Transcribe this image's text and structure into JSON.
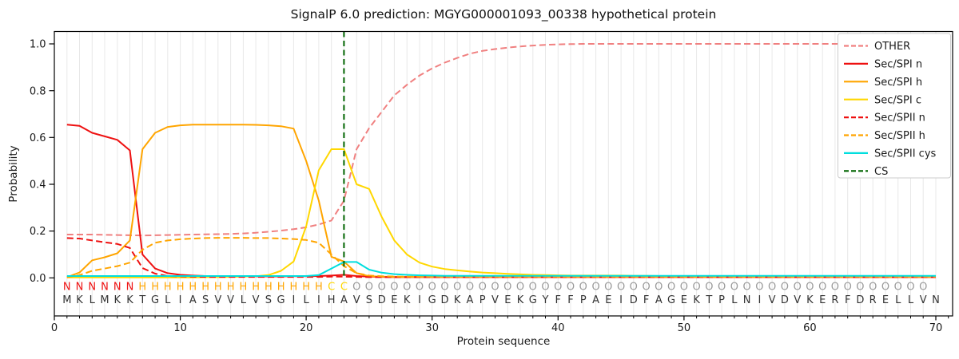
{
  "chart_data": {
    "type": "line",
    "title": "SignalP 6.0 prediction: MGYG000001093_00338 hypothetical protein",
    "xlabel": "Protein sequence",
    "ylabel": "Probability",
    "xlim": [
      0,
      71.3
    ],
    "ylim": [
      -0.16,
      1.05
    ],
    "xticks": [
      0,
      10,
      20,
      30,
      40,
      50,
      60,
      70
    ],
    "yticks": [
      "0.0",
      "0.2",
      "0.4",
      "0.6",
      "0.8",
      "1.0"
    ],
    "grid": "vertical-line-per-residue",
    "legend_position": "upper-right",
    "x_positions_note": "one value per residue, positions 1-70",
    "series": [
      {
        "name": "OTHER",
        "color": "#f08080",
        "style": "dashed",
        "values": [
          0.185,
          0.185,
          0.185,
          0.184,
          0.183,
          0.182,
          0.181,
          0.182,
          0.183,
          0.184,
          0.185,
          0.186,
          0.187,
          0.188,
          0.19,
          0.193,
          0.197,
          0.202,
          0.208,
          0.216,
          0.228,
          0.245,
          0.33,
          0.55,
          0.64,
          0.71,
          0.78,
          0.825,
          0.865,
          0.895,
          0.92,
          0.94,
          0.958,
          0.97,
          0.978,
          0.984,
          0.989,
          0.993,
          0.996,
          0.998,
          0.999,
          1,
          1,
          1,
          1,
          1,
          1,
          1,
          1,
          1,
          1,
          1,
          1,
          1,
          1,
          1,
          1,
          1,
          1,
          1,
          1,
          1,
          1,
          1,
          1,
          1,
          1,
          1,
          1,
          1
        ]
      },
      {
        "name": "Sec/SPI n",
        "color": "#ee1111",
        "style": "solid",
        "values": [
          0.655,
          0.65,
          0.62,
          0.605,
          0.59,
          0.545,
          0.1,
          0.04,
          0.02,
          0.013,
          0.01,
          0.008,
          0.007,
          0.007,
          0.006,
          0.006,
          0.006,
          0.006,
          0.007,
          0.007,
          0.008,
          0.01,
          0.013,
          0.008,
          0.005,
          0.004,
          0.003,
          0.003,
          0.003,
          0.003,
          0.003,
          0.003,
          0.003,
          0.003,
          0.003,
          0.003,
          0.003,
          0.003,
          0.003,
          0.003,
          0.003,
          0.003,
          0.003,
          0.003,
          0.003,
          0.003,
          0.003,
          0.003,
          0.003,
          0.003,
          0.003,
          0.003,
          0.003,
          0.003,
          0.003,
          0.003,
          0.003,
          0.003,
          0.003,
          0.003,
          0.003,
          0.003,
          0.003,
          0.003,
          0.003,
          0.003,
          0.003,
          0.003,
          0.003,
          0.003
        ]
      },
      {
        "name": "Sec/SPI h",
        "color": "#ffa500",
        "style": "solid",
        "values": [
          0.003,
          0.023,
          0.075,
          0.088,
          0.105,
          0.16,
          0.55,
          0.62,
          0.645,
          0.652,
          0.655,
          0.655,
          0.655,
          0.655,
          0.655,
          0.654,
          0.652,
          0.648,
          0.638,
          0.5,
          0.33,
          0.09,
          0.07,
          0.02,
          0.007,
          0.005,
          0.004,
          0.004,
          0.004,
          0.004,
          0.004,
          0.004,
          0.004,
          0.004,
          0.004,
          0.004,
          0.004,
          0.004,
          0.004,
          0.004,
          0.004,
          0.004,
          0.004,
          0.004,
          0.004,
          0.004,
          0.004,
          0.004,
          0.004,
          0.004,
          0.004,
          0.004,
          0.004,
          0.004,
          0.004,
          0.004,
          0.004,
          0.004,
          0.004,
          0.004,
          0.004,
          0.004,
          0.004,
          0.004,
          0.004,
          0.004,
          0.004,
          0.004,
          0.004,
          0.004
        ]
      },
      {
        "name": "Sec/SPI c",
        "color": "#ffd700",
        "style": "solid",
        "values": [
          0.002,
          0.002,
          0.002,
          0.002,
          0.002,
          0.002,
          0.002,
          0.002,
          0.002,
          0.002,
          0.002,
          0.003,
          0.003,
          0.004,
          0.005,
          0.007,
          0.012,
          0.03,
          0.07,
          0.22,
          0.46,
          0.55,
          0.55,
          0.4,
          0.38,
          0.26,
          0.16,
          0.1,
          0.065,
          0.048,
          0.038,
          0.032,
          0.027,
          0.023,
          0.02,
          0.017,
          0.015,
          0.013,
          0.012,
          0.011,
          0.01,
          0.01,
          0.01,
          0.01,
          0.01,
          0.009,
          0.009,
          0.008,
          0.008,
          0.008,
          0.007,
          0.007,
          0.007,
          0.007,
          0.007,
          0.007,
          0.006,
          0.006,
          0.006,
          0.006,
          0.006,
          0.006,
          0.005,
          0.005,
          0.005,
          0.005,
          0.005,
          0.005,
          0.005,
          0.005
        ]
      },
      {
        "name": "Sec/SPII n",
        "color": "#ee1111",
        "style": "dashed",
        "values": [
          0.17,
          0.168,
          0.16,
          0.152,
          0.145,
          0.128,
          0.042,
          0.018,
          0.008,
          0.006,
          0.005,
          0.004,
          0.004,
          0.004,
          0.004,
          0.004,
          0.004,
          0.004,
          0.004,
          0.004,
          0.004,
          0.005,
          0.005,
          0.004,
          0.003,
          0.003,
          0.003,
          0.003,
          0.003,
          0.003,
          0.003,
          0.003,
          0.003,
          0.003,
          0.003,
          0.003,
          0.003,
          0.003,
          0.003,
          0.003,
          0.003,
          0.003,
          0.003,
          0.003,
          0.003,
          0.003,
          0.003,
          0.003,
          0.003,
          0.003,
          0.003,
          0.003,
          0.003,
          0.003,
          0.003,
          0.003,
          0.003,
          0.003,
          0.003,
          0.003,
          0.003,
          0.003,
          0.003,
          0.003,
          0.003,
          0.003,
          0.003,
          0.003,
          0.003,
          0.003
        ]
      },
      {
        "name": "Sec/SPII h",
        "color": "#ffa500",
        "style": "dashed",
        "values": [
          0.002,
          0.012,
          0.03,
          0.04,
          0.05,
          0.065,
          0.12,
          0.15,
          0.16,
          0.165,
          0.168,
          0.17,
          0.171,
          0.171,
          0.171,
          0.17,
          0.17,
          0.168,
          0.166,
          0.162,
          0.15,
          0.1,
          0.05,
          0.02,
          0.01,
          0.007,
          0.006,
          0.005,
          0.005,
          0.005,
          0.005,
          0.005,
          0.005,
          0.005,
          0.005,
          0.005,
          0.005,
          0.005,
          0.005,
          0.005,
          0.005,
          0.005,
          0.005,
          0.005,
          0.005,
          0.005,
          0.005,
          0.005,
          0.005,
          0.005,
          0.005,
          0.005,
          0.005,
          0.005,
          0.005,
          0.005,
          0.005,
          0.005,
          0.005,
          0.005,
          0.005,
          0.005,
          0.005,
          0.005,
          0.005,
          0.005,
          0.005,
          0.005,
          0.005,
          0.005
        ]
      },
      {
        "name": "Sec/SPII cys",
        "color": "#00dede",
        "style": "solid",
        "values": [
          0.008,
          0.008,
          0.008,
          0.008,
          0.008,
          0.008,
          0.008,
          0.008,
          0.008,
          0.008,
          0.008,
          0.008,
          0.008,
          0.008,
          0.008,
          0.008,
          0.008,
          0.008,
          0.008,
          0.008,
          0.012,
          0.04,
          0.068,
          0.068,
          0.035,
          0.022,
          0.016,
          0.013,
          0.011,
          0.01,
          0.009,
          0.009,
          0.009,
          0.009,
          0.009,
          0.009,
          0.009,
          0.009,
          0.009,
          0.009,
          0.009,
          0.009,
          0.009,
          0.009,
          0.009,
          0.009,
          0.009,
          0.009,
          0.009,
          0.009,
          0.009,
          0.009,
          0.009,
          0.009,
          0.009,
          0.009,
          0.009,
          0.009,
          0.009,
          0.009,
          0.009,
          0.009,
          0.009,
          0.009,
          0.009,
          0.009,
          0.009,
          0.009,
          0.009,
          0.009
        ]
      }
    ],
    "cs_marker": {
      "label": "CS",
      "color": "#006400",
      "style": "dashed-vertical",
      "position": 23
    },
    "sequence": "MKLMKKTGLIASVVLVSGILIHAVSDEKIGDKAPVEKGYFFPAEIDFAGEKTPLNIVDVKERFDRELLVN",
    "region_labels": "NNNNNNHHHHHHHHHHHHHHHCCOOOOOOOOOOOOOOOOOOOOOOOOOOOOOOOOOOOOOOOOOOOOOO",
    "region_colors": {
      "N": "#ee1111",
      "H": "#ffa500",
      "C": "#ffd700",
      "O": "#999999"
    },
    "sequence_color": "#333333"
  }
}
